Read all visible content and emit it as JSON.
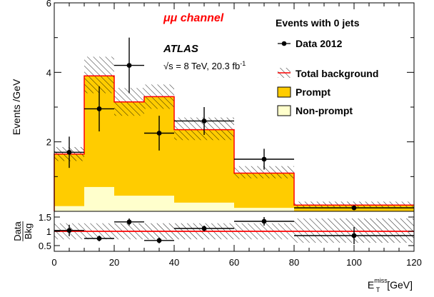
{
  "chart_data": [
    {
      "type": "bar",
      "panel": "main",
      "ylabel": "Events /GeV",
      "ylim": [
        0,
        6
      ],
      "y_ticks": [
        "2",
        "4",
        "6"
      ],
      "bin_edges": [
        0,
        10,
        20,
        30,
        40,
        60,
        80,
        120
      ],
      "series": [
        {
          "name": "Total background",
          "values": [
            1.65,
            3.9,
            3.15,
            3.3,
            2.35,
            1.1,
            0.18
          ]
        },
        {
          "name": "Prompt",
          "values": [
            1.5,
            3.2,
            2.7,
            2.85,
            2.1,
            1.0,
            0.17
          ]
        },
        {
          "name": "Non-prompt",
          "values": [
            0.15,
            0.7,
            0.45,
            0.45,
            0.25,
            0.1,
            0.01
          ]
        }
      ],
      "background_band": {
        "lower": [
          1.45,
          3.4,
          2.75,
          2.95,
          2.05,
          0.95,
          0.12
        ],
        "upper": [
          1.85,
          4.45,
          3.55,
          3.65,
          2.7,
          1.3,
          0.28
        ]
      },
      "data_points": {
        "name": "Data 2012",
        "x": [
          5,
          15,
          25,
          35,
          50,
          70,
          100
        ],
        "x_err": [
          5,
          5,
          5,
          5,
          10,
          10,
          20
        ],
        "y": [
          1.7,
          2.95,
          4.2,
          2.25,
          2.6,
          1.5,
          0.1
        ],
        "y_err": [
          0.45,
          0.65,
          0.8,
          0.5,
          0.4,
          0.3,
          0.05
        ]
      },
      "annotations": {
        "channel": "μμ channel",
        "experiment": "ATLAS",
        "energy": "√s = 8 TeV, 20.3 fb",
        "energy_sup": "-1",
        "legend_title": "Events with 0 jets"
      },
      "legend_placement": "top-right"
    },
    {
      "type": "scatter",
      "panel": "ratio",
      "ylabel_num": "Data",
      "ylabel_den": "Bkg",
      "ylim": [
        0.3,
        1.7
      ],
      "y_ticks": [
        "0.5",
        "1",
        "1.5"
      ],
      "x_ticks": [
        "0",
        "20",
        "40",
        "60",
        "80",
        "100",
        "120"
      ],
      "xlim": [
        0,
        120
      ],
      "xlabel": "E",
      "xlabel_sub": "T",
      "xlabel_sup": "miss",
      "xlabel_unit": "[GeV]",
      "x": [
        5,
        15,
        25,
        35,
        50,
        70,
        100
      ],
      "x_err": [
        5,
        5,
        5,
        5,
        10,
        10,
        20
      ],
      "y": [
        1.03,
        0.75,
        1.33,
        0.68,
        1.1,
        1.35,
        0.85
      ],
      "y_err": [
        0.2,
        0.1,
        0.12,
        0.1,
        0.1,
        0.15,
        0.3
      ],
      "band": {
        "lower": [
          0.72,
          0.72,
          0.72,
          0.72,
          0.72,
          0.72,
          0.6
        ],
        "upper": [
          1.28,
          1.28,
          1.28,
          1.28,
          1.28,
          1.28,
          1.45
        ]
      }
    }
  ],
  "colors": {
    "prompt": "#ffcc00",
    "non_prompt": "#ffffcc",
    "total_background": "#ff0000",
    "data": "#000000",
    "channel_text": "#ff0000"
  }
}
